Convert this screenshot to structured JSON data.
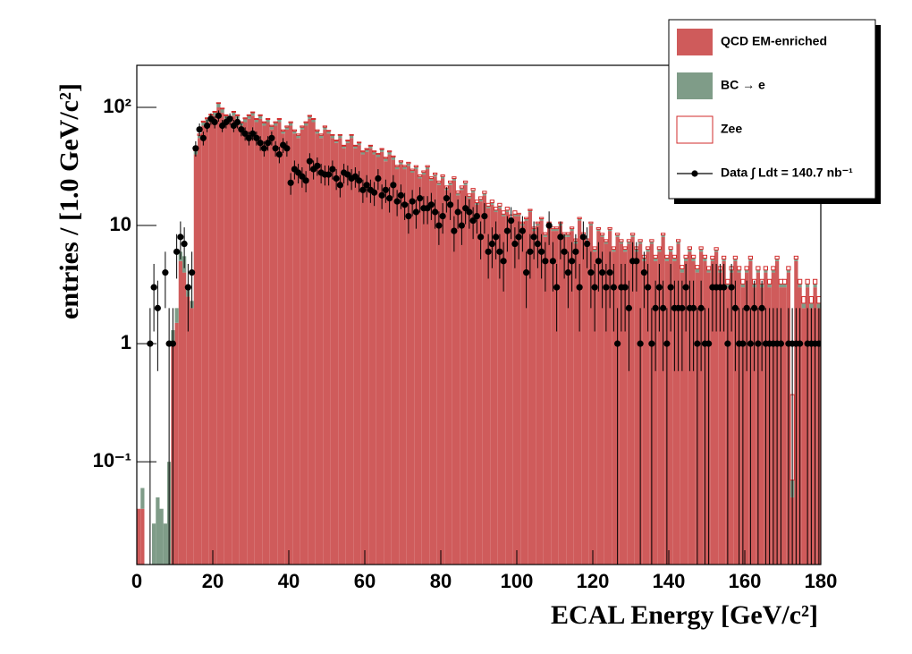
{
  "chart_data": {
    "type": "histogram",
    "xlabel": "ECAL Energy [GeV/c²]",
    "ylabel": "entries / [1.0 GeV/c²]",
    "bins": [
      0,
      1,
      2,
      3,
      4,
      5,
      6,
      7,
      8,
      9,
      10,
      11,
      12,
      13,
      14,
      15,
      16,
      17,
      18,
      19,
      20,
      21,
      22,
      23,
      24,
      25,
      26,
      27,
      28,
      29,
      30,
      31,
      32,
      33,
      34,
      35,
      36,
      37,
      38,
      39,
      40,
      41,
      42,
      43,
      44,
      45,
      46,
      47,
      48,
      49,
      50,
      51,
      52,
      53,
      54,
      55,
      56,
      57,
      58,
      59,
      60,
      61,
      62,
      63,
      64,
      65,
      66,
      67,
      68,
      69,
      70,
      71,
      72,
      73,
      74,
      75,
      76,
      77,
      78,
      79,
      80,
      81,
      82,
      83,
      84,
      85,
      86,
      87,
      88,
      89,
      90,
      91,
      92,
      93,
      94,
      95,
      96,
      97,
      98,
      99,
      100,
      101,
      102,
      103,
      104,
      105,
      106,
      107,
      108,
      109,
      110,
      111,
      112,
      113,
      114,
      115,
      116,
      117,
      118,
      119,
      120,
      121,
      122,
      123,
      124,
      125,
      126,
      127,
      128,
      129,
      130,
      131,
      132,
      133,
      134,
      135,
      136,
      137,
      138,
      139,
      140,
      141,
      142,
      143,
      144,
      145,
      146,
      147,
      148,
      149,
      150,
      151,
      152,
      153,
      154,
      155,
      156,
      157,
      158,
      159,
      160,
      161,
      162,
      163,
      164,
      165,
      166,
      167,
      168,
      169,
      170,
      171,
      172,
      173,
      174,
      175,
      176,
      177,
      178,
      179,
      180
    ],
    "series": [
      {
        "name": "QCD EM-enriched",
        "color": "#cf5b5b",
        "style": "fill",
        "values": [
          0.04,
          0.04,
          0,
          0,
          0,
          0,
          0,
          0,
          0,
          1,
          1.5,
          5,
          4,
          2.5,
          2,
          40,
          55,
          70,
          75,
          80,
          85,
          100,
          90,
          80,
          75,
          85,
          80,
          70,
          75,
          80,
          85,
          75,
          80,
          70,
          75,
          65,
          70,
          75,
          60,
          65,
          70,
          60,
          55,
          65,
          70,
          80,
          75,
          60,
          55,
          65,
          60,
          55,
          50,
          55,
          45,
          50,
          55,
          45,
          48,
          40,
          42,
          45,
          40,
          38,
          42,
          35,
          40,
          36,
          30,
          33,
          30,
          32,
          28,
          30,
          25,
          27,
          30,
          24,
          26,
          22,
          25,
          20,
          22,
          24,
          18,
          20,
          22,
          17,
          19,
          15,
          16,
          18,
          14,
          15,
          13,
          14,
          12,
          13,
          11,
          12,
          12,
          10,
          11,
          13,
          9,
          10,
          11,
          8,
          10,
          9,
          9,
          10,
          8,
          8,
          9,
          7,
          11,
          8,
          7,
          10,
          6,
          9,
          8,
          7,
          9,
          6,
          8,
          7,
          6,
          7,
          8,
          6,
          7,
          5,
          6,
          7,
          5,
          6,
          8,
          5,
          6,
          5,
          7,
          4,
          5,
          6,
          5,
          4,
          6,
          5,
          4,
          5,
          6,
          4,
          5,
          3,
          4,
          5,
          4,
          3,
          4,
          5,
          3,
          4,
          3,
          4,
          3,
          4,
          5,
          3,
          3,
          4,
          0.05,
          5,
          3,
          2,
          3,
          2,
          3,
          2
        ]
      },
      {
        "name": "BC → e",
        "color": "#7f9c88",
        "style": "fill",
        "values": [
          0,
          0.02,
          0.01,
          0,
          0.03,
          0.05,
          0.04,
          0.03,
          0.1,
          0.3,
          0.5,
          1,
          1.5,
          0.5,
          0.3,
          3,
          3,
          5,
          5,
          6,
          6,
          8,
          7,
          5,
          5,
          6,
          5,
          4,
          5,
          5,
          5,
          4,
          5,
          4,
          4,
          4,
          4,
          4,
          3,
          3,
          4,
          3,
          3,
          3,
          4,
          4,
          4,
          3,
          3,
          3,
          3,
          3,
          2,
          3,
          2,
          2,
          3,
          2,
          2,
          2,
          2,
          2,
          2,
          2,
          2,
          2,
          2,
          2,
          1.5,
          1.5,
          1.5,
          1.5,
          1.2,
          1.3,
          1,
          1.2,
          1.3,
          1,
          1,
          1,
          1,
          0.8,
          1,
          1,
          0.8,
          0.8,
          1,
          0.7,
          0.8,
          0.6,
          0.7,
          0.7,
          0.6,
          0.6,
          0.5,
          0.6,
          0.5,
          0.5,
          0.5,
          0.5,
          0.4,
          0.4,
          0.4,
          0.4,
          0.4,
          0.4,
          0.4,
          0.4,
          0.4,
          0.4,
          0.4,
          0.4,
          0.4,
          0.4,
          0.4,
          0.4,
          0.4,
          0.4,
          0.4,
          0.4,
          0.3,
          0.3,
          0.3,
          0.3,
          0.3,
          0.3,
          0.3,
          0.3,
          0.3,
          0.3,
          0.3,
          0.3,
          0.3,
          0.3,
          0.3,
          0.3,
          0.3,
          0.3,
          0.3,
          0.3,
          0.3,
          0.3,
          0.3,
          0.3,
          0.3,
          0.3,
          0.3,
          0.3,
          0.3,
          0.3,
          0.2,
          0.2,
          0.2,
          0.2,
          0.2,
          0.2,
          0.2,
          0.2,
          0.2,
          0.2,
          0.2,
          0.2,
          0.2,
          0.2,
          0.2,
          0.2,
          0.2,
          0.2,
          0.2,
          0.2,
          0.2,
          0.2,
          0.02,
          0.2,
          0.2,
          0.2,
          0.2,
          0.2,
          0.2,
          0.2
        ]
      },
      {
        "name": "Zee",
        "color": "#d22b2b",
        "style": "outline",
        "values": [
          0,
          0,
          0,
          0,
          0,
          0,
          0,
          0,
          0,
          0,
          0,
          0,
          0,
          0,
          0,
          1.5,
          1.5,
          1.5,
          1.5,
          1.5,
          1.5,
          1.5,
          1.5,
          1.5,
          1.5,
          1.5,
          1.5,
          1.5,
          1.5,
          1.5,
          1.5,
          1.5,
          1.5,
          1.5,
          1.5,
          1.5,
          1.5,
          1.5,
          1.5,
          1.5,
          1.5,
          1.5,
          1.5,
          1.5,
          1.5,
          1.5,
          1.5,
          1.5,
          1.5,
          1.5,
          0.8,
          0.8,
          0.8,
          0.8,
          0.8,
          0.8,
          0.8,
          0.8,
          0.8,
          0.8,
          0.8,
          0.8,
          0.8,
          0.8,
          0.8,
          0.8,
          0.8,
          0.8,
          0.8,
          0.8,
          0.8,
          0.8,
          0.8,
          0.8,
          0.8,
          0.8,
          0.8,
          0.8,
          0.8,
          0.8,
          0.8,
          0.8,
          0.8,
          0.8,
          0.8,
          0.8,
          0.8,
          0.8,
          0.8,
          0.8,
          0.8,
          0.8,
          0.8,
          0.8,
          0.8,
          0.8,
          0.8,
          0.8,
          0.8,
          0.8,
          0.3,
          0.3,
          0.3,
          0.3,
          0.3,
          0.3,
          0.3,
          0.3,
          0.3,
          0.3,
          0.3,
          0.3,
          0.3,
          0.3,
          0.3,
          0.3,
          0.3,
          0.3,
          0.3,
          0.3,
          0.3,
          0.3,
          0.3,
          0.3,
          0.3,
          0.3,
          0.3,
          0.3,
          0.3,
          0.3,
          0.3,
          0.3,
          0.3,
          0.3,
          0.3,
          0.3,
          0.3,
          0.3,
          0.3,
          0.3,
          0.3,
          0.3,
          0.3,
          0.3,
          0.3,
          0.3,
          0.3,
          0.3,
          0.3,
          0.3,
          0.3,
          0.3,
          0.3,
          0.3,
          0.3,
          0.3,
          0.3,
          0.3,
          0.3,
          0.3,
          0.3,
          0.3,
          0.3,
          0.3,
          0.3,
          0.3,
          0.3,
          0.3,
          0.3,
          0.3,
          0.3,
          0.3,
          0.3,
          0.3,
          0.3,
          0.3,
          0.3,
          0.3,
          0.3,
          0.3
        ]
      },
      {
        "name": "Data ∫ Ldt = 140.7 nb⁻¹",
        "color": "#000000",
        "style": "points",
        "values": [
          0,
          0,
          0,
          1,
          3,
          2,
          0,
          4,
          1,
          1,
          6,
          8,
          7,
          3,
          4,
          45,
          65,
          55,
          70,
          80,
          75,
          85,
          70,
          75,
          80,
          70,
          75,
          65,
          60,
          55,
          60,
          55,
          50,
          45,
          50,
          55,
          45,
          40,
          48,
          45,
          23,
          30,
          28,
          26,
          24,
          35,
          30,
          32,
          28,
          27,
          27,
          30,
          25,
          22,
          28,
          27,
          25,
          26,
          24,
          20,
          22,
          20,
          19,
          25,
          18,
          20,
          17,
          22,
          16,
          18,
          15,
          12,
          16,
          13,
          17,
          14,
          14,
          15,
          13,
          10,
          12,
          17,
          15,
          9,
          13,
          10,
          14,
          13,
          11,
          12,
          8,
          12,
          6,
          7,
          8,
          6,
          5,
          9,
          11,
          7,
          8,
          9,
          4,
          6,
          8,
          7,
          6,
          5,
          10,
          5,
          3,
          8,
          6,
          4,
          5,
          6,
          3,
          8,
          7,
          4,
          3,
          5,
          4,
          3,
          4,
          3,
          1,
          3,
          3,
          2,
          5,
          5,
          1,
          4,
          3,
          1,
          2,
          3,
          2,
          1,
          3,
          2,
          2,
          2,
          3,
          2,
          2,
          1,
          2,
          1,
          1,
          3,
          3,
          3,
          3,
          1,
          3,
          2,
          1,
          1,
          2,
          1,
          2,
          1,
          2,
          1,
          1,
          1,
          1,
          1,
          0,
          1,
          1,
          1,
          1,
          0,
          1,
          1,
          1,
          1
        ]
      }
    ],
    "xlim": [
      0,
      180
    ],
    "xticks": [
      0,
      20,
      40,
      60,
      80,
      100,
      120,
      140,
      160,
      180
    ],
    "ylim": [
      0.0135,
      227
    ],
    "log_y": true,
    "yticks": [
      {
        "value": 0.1,
        "label": "10⁻¹"
      },
      1,
      10,
      {
        "value": 100,
        "label": "10²"
      }
    ],
    "legend": "upper right"
  }
}
